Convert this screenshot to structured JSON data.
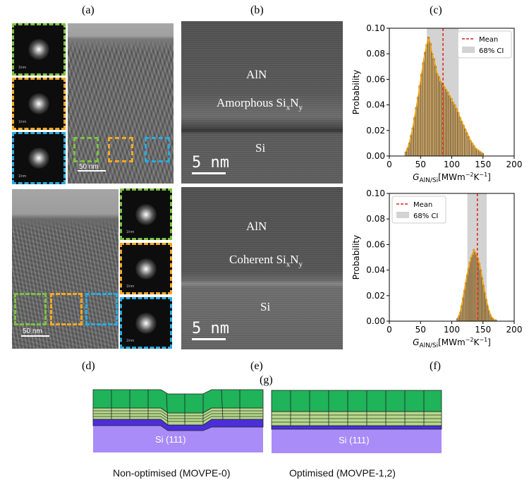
{
  "panel_labels": {
    "a": "(a)",
    "b": "(b)",
    "c": "(c)",
    "d": "(d)",
    "e": "(e)",
    "f": "(f)",
    "g": "(g)"
  },
  "panel_a": {
    "scale_bar": "50 nm",
    "fft_scale": "1/nm"
  },
  "panel_b": {
    "layer_top": "AlN",
    "interlayer": "Amorphous Si",
    "interlayer_sub_x": "x",
    "interlayer_n": "N",
    "interlayer_sub_y": "y",
    "substrate": "Si",
    "scale_bar": "5 nm"
  },
  "panel_d": {
    "scale_bar": "50 nm",
    "fft_scale": "1/nm"
  },
  "panel_e": {
    "layer_top": "AlN",
    "interlayer": "Coherent Si",
    "interlayer_sub_x": "x",
    "interlayer_n": "N",
    "interlayer_sub_y": "y",
    "substrate": "Si",
    "scale_bar": "5 nm"
  },
  "panel_g": {
    "left_substrate": "Si (111)",
    "right_substrate": "Si (111)",
    "left_caption": "Non-optimised (MOVPE-0)",
    "right_caption": "Optimised (MOVPE-1,2)",
    "colors": {
      "aln": "#1fb35a",
      "buffer": "#b4d98a",
      "interlayer": "#4a2fd9",
      "substrate": "#a98cf7"
    }
  },
  "chart_data": [
    {
      "type": "bar",
      "panel": "c",
      "title": "",
      "xlabel": "G_AlN/Si [MWm^-2 K^-1]",
      "ylabel": "Probability",
      "xlim": [
        0,
        200
      ],
      "ylim": [
        0,
        0.1
      ],
      "xticks": [
        "0",
        "50",
        "100",
        "150",
        "200"
      ],
      "yticks": [
        "0.00",
        "0.02",
        "0.04",
        "0.06",
        "0.08",
        "0.10"
      ],
      "legend": [
        "Mean",
        "68% CI"
      ],
      "legend_position": "top-right",
      "mean": 86,
      "ci": [
        60,
        111
      ],
      "bin_start": 25,
      "bin_width": 2.8,
      "values": [
        0.003,
        0.006,
        0.01,
        0.016,
        0.022,
        0.03,
        0.038,
        0.046,
        0.055,
        0.064,
        0.073,
        0.081,
        0.087,
        0.093,
        0.088,
        0.08,
        0.076,
        0.07,
        0.064,
        0.062,
        0.058,
        0.057,
        0.054,
        0.052,
        0.05,
        0.047,
        0.045,
        0.042,
        0.04,
        0.037,
        0.034,
        0.03,
        0.027,
        0.024,
        0.021,
        0.018,
        0.015,
        0.012,
        0.01,
        0.008,
        0.006,
        0.005,
        0.004,
        0.003,
        0.002
      ]
    },
    {
      "type": "bar",
      "panel": "f",
      "title": "",
      "xlabel": "G_AlN/Si [MWm^-2 K^-1]",
      "ylabel": "Probability",
      "xlim": [
        0,
        200
      ],
      "ylim": [
        0,
        0.1
      ],
      "xticks": [
        "0",
        "50",
        "100",
        "150",
        "200"
      ],
      "yticks": [
        "0.00",
        "0.02",
        "0.04",
        "0.06",
        "0.08",
        "0.10"
      ],
      "legend": [
        "Mean",
        "68% CI"
      ],
      "legend_position": "top-left",
      "mean": 141,
      "ci": [
        125,
        156
      ],
      "bin_start": 108,
      "bin_width": 2.2,
      "values": [
        0.002,
        0.004,
        0.007,
        0.012,
        0.018,
        0.024,
        0.03,
        0.036,
        0.041,
        0.046,
        0.05,
        0.052,
        0.056,
        0.054,
        0.052,
        0.049,
        0.045,
        0.04,
        0.034,
        0.028,
        0.022,
        0.017,
        0.012,
        0.008,
        0.005,
        0.003,
        0.002,
        0.001,
        0.001
      ]
    }
  ]
}
